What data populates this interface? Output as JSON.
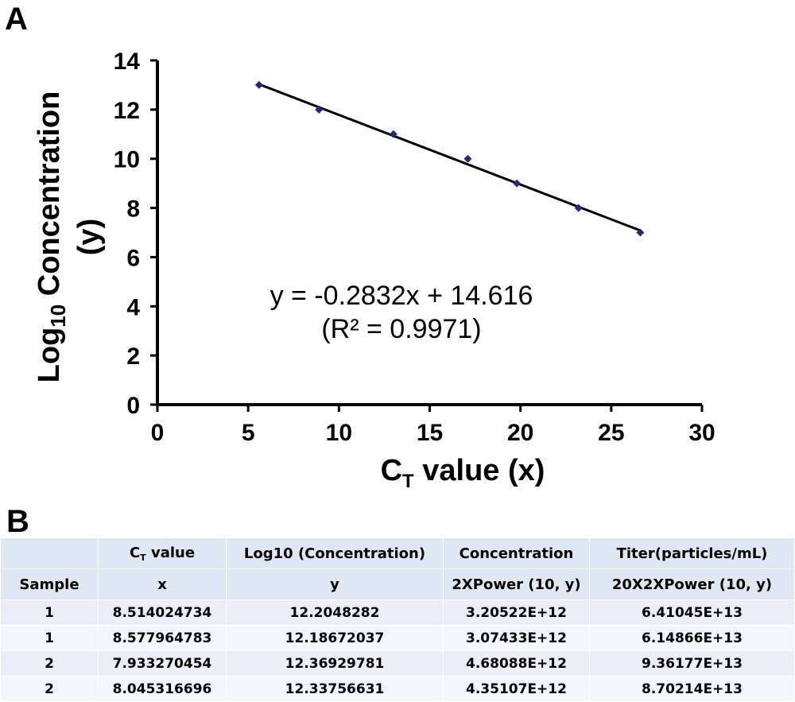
{
  "panels": {
    "a": "A",
    "b": "B"
  },
  "chart_data": {
    "type": "scatter",
    "x": [
      5.6,
      8.9,
      13.0,
      17.1,
      19.8,
      23.2,
      26.6
    ],
    "y": [
      13,
      12,
      11,
      10,
      9,
      8,
      7
    ],
    "trendline": {
      "slope": -0.2832,
      "intercept": 14.616,
      "x_range": [
        5.6,
        26.6
      ]
    },
    "xlim": [
      0,
      30
    ],
    "ylim": [
      0,
      14
    ],
    "xticks": [
      "0",
      "5",
      "10",
      "15",
      "20",
      "25",
      "30"
    ],
    "yticks": [
      "0",
      "2",
      "4",
      "6",
      "8",
      "10",
      "12",
      "14"
    ],
    "xlabel_main": "C",
    "xlabel_sub": "T",
    "xlabel_rest": " value (x)",
    "ylabel_line1_pre": "Log",
    "ylabel_line1_sub": "10",
    "ylabel_line1_post": " Concentration",
    "ylabel_line2": "(y)",
    "equation": "y = -0.2832x + 14.616",
    "r_squared": "(R² = 0.9971)",
    "marker_color": "#1f2d78",
    "line_color": "#000000"
  },
  "table": {
    "header1": {
      "c0": "",
      "c1_main": "C",
      "c1_sub": "T",
      "c1_rest": " value",
      "c2": "Log10 (Concentration)",
      "c3": "Concentration",
      "c4": "Titer(particles/mL)"
    },
    "header2": [
      "Sample",
      "x",
      "y",
      "2XPower (10, y)",
      "20X2XPower (10, y)"
    ],
    "rows": [
      [
        "1",
        "8.514024734",
        "12.2048282",
        "3.20522E+12",
        "6.41045E+13"
      ],
      [
        "1",
        "8.577964783",
        "12.18672037",
        "3.07433E+12",
        "6.14866E+13"
      ],
      [
        "2",
        "7.933270454",
        "12.36929781",
        "4.68088E+12",
        "9.36177E+13"
      ],
      [
        "2",
        "8.045316696",
        "12.33756631",
        "4.35107E+12",
        "8.70214E+13"
      ]
    ]
  }
}
